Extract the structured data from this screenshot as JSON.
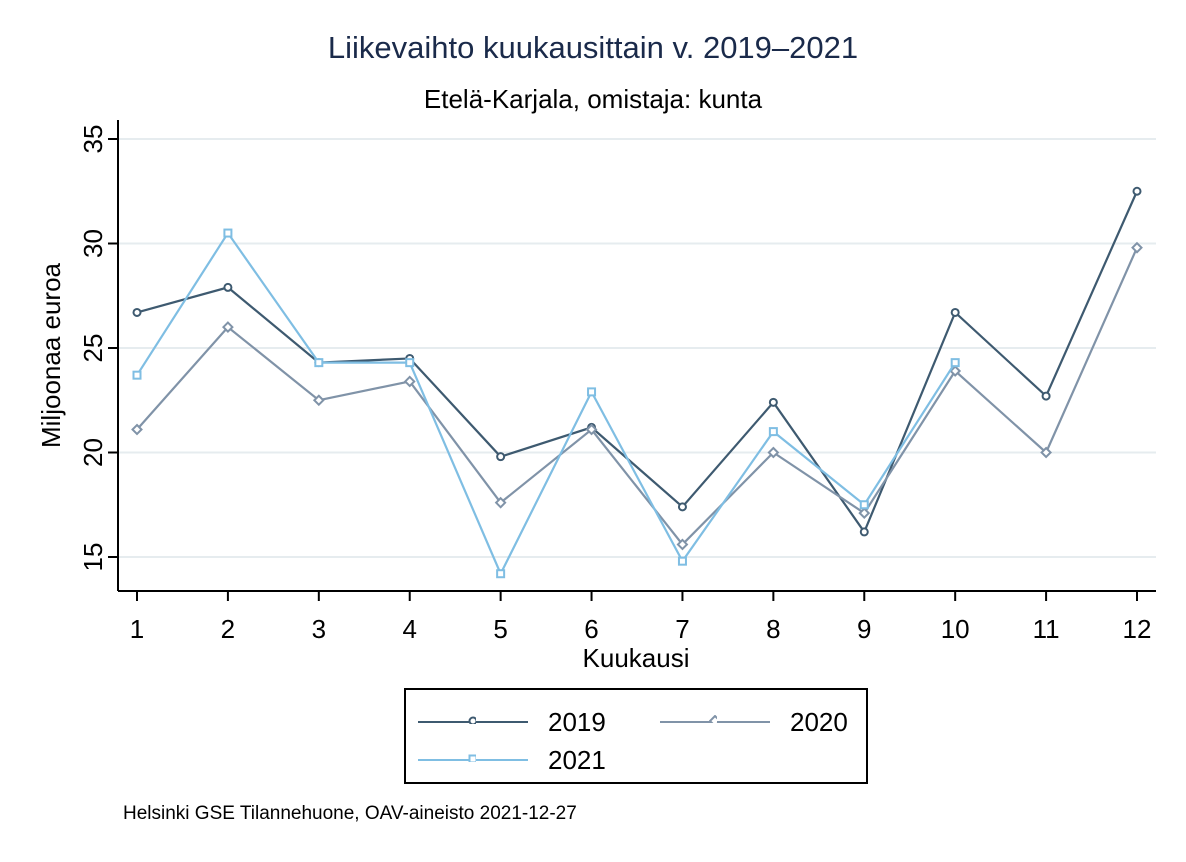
{
  "chart_data": {
    "type": "line",
    "title": "Liikevaihto kuukausittain v. 2019–2021",
    "subtitle": "Etelä-Karjala, omistaja: kunta",
    "xlabel": "Kuukausi",
    "ylabel": "Miljoonaa euroa",
    "x": [
      1,
      2,
      3,
      4,
      5,
      6,
      7,
      8,
      9,
      10,
      11,
      12
    ],
    "ylim": [
      13,
      36
    ],
    "yticks": [
      15,
      20,
      25,
      30,
      35
    ],
    "grid": true,
    "legend_position": "bottom",
    "series": [
      {
        "name": "2019",
        "color": "#3e5a70",
        "marker": "circle",
        "values": [
          26.7,
          27.9,
          24.3,
          24.5,
          19.8,
          21.2,
          17.4,
          22.4,
          16.2,
          26.7,
          22.7,
          32.5
        ]
      },
      {
        "name": "2020",
        "color": "#8093a8",
        "marker": "diamond",
        "values": [
          21.1,
          26.0,
          22.5,
          23.4,
          17.6,
          21.1,
          15.6,
          20.0,
          17.1,
          23.9,
          20.0,
          29.8
        ]
      },
      {
        "name": "2021",
        "color": "#7fbee3",
        "marker": "square",
        "values": [
          23.7,
          30.5,
          24.3,
          24.3,
          14.2,
          22.9,
          14.8,
          21.0,
          17.5,
          24.3,
          null,
          null
        ]
      }
    ]
  },
  "source": "Helsinki GSE Tilannehuone, OAV-aineisto 2021-12-27"
}
